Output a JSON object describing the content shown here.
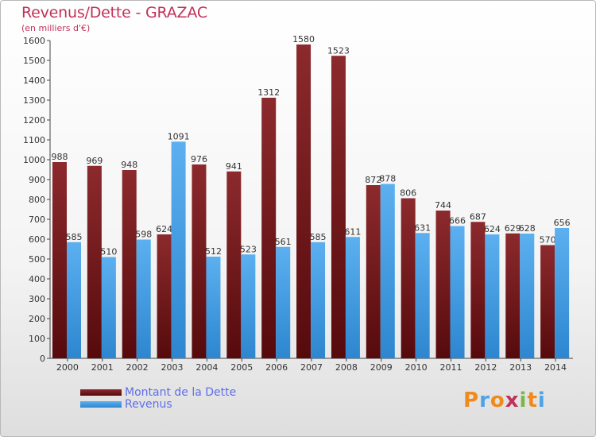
{
  "header": {
    "title": "Revenus/Dette - GRAZAC",
    "subtitle": "(en milliers d'€)"
  },
  "chart_data": {
    "type": "bar",
    "title": "Revenus/Dette - GRAZAC",
    "subtitle": "(en milliers d'€)",
    "categories": [
      "2000",
      "2001",
      "2002",
      "2003",
      "2004",
      "2005",
      "2006",
      "2007",
      "2008",
      "2009",
      "2010",
      "2011",
      "2012",
      "2013",
      "2014"
    ],
    "series": [
      {
        "name": "Montant de la Dette",
        "color": "#7a1c1f",
        "values": [
          988,
          969,
          948,
          624,
          976,
          941,
          1312,
          1580,
          1523,
          872,
          806,
          744,
          687,
          629,
          570
        ]
      },
      {
        "name": "Revenus",
        "color": "#4ea3e6",
        "values": [
          585,
          510,
          598,
          1091,
          512,
          523,
          561,
          585,
          611,
          878,
          631,
          666,
          624,
          628,
          656
        ]
      }
    ],
    "ylim": [
      0,
      1600
    ],
    "yticks": [
      0,
      100,
      200,
      300,
      400,
      500,
      600,
      700,
      800,
      900,
      1000,
      1100,
      1200,
      1300,
      1400,
      1500,
      1600
    ],
    "grid": false,
    "legend_position": "bottom-left"
  },
  "legend": {
    "items": [
      {
        "label": "Montant de la Dette",
        "color": "#7a1c1f"
      },
      {
        "label": "Revenus",
        "color": "#4ea3e6"
      }
    ]
  },
  "logo": {
    "text": "Proxiti",
    "letters": [
      "P",
      "r",
      "o",
      "x",
      "i",
      "t",
      "i"
    ],
    "colors": [
      "#f08a1c",
      "#4ea3e6",
      "#f08a1c",
      "#c0325a",
      "#7ab648",
      "#f08a1c",
      "#4ea3e6"
    ]
  }
}
